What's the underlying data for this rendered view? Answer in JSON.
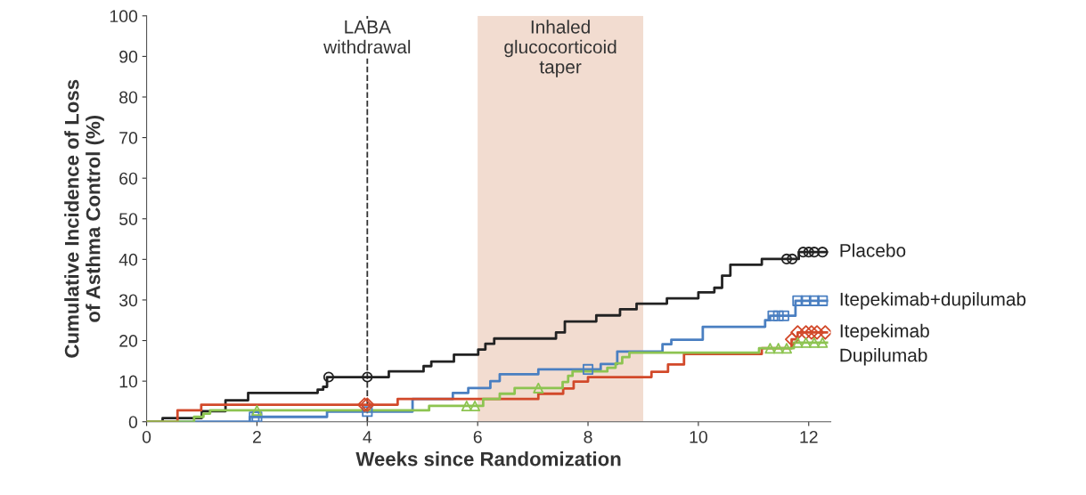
{
  "chart_data": {
    "type": "step",
    "xlabel": "Weeks since Randomization",
    "ylabel": "Cumulative Incidence of Loss\nof Asthma Control (%)",
    "xlim": [
      0,
      12.4
    ],
    "xticks": [
      0,
      2,
      4,
      6,
      8,
      10,
      12
    ],
    "ylim": [
      0,
      100
    ],
    "yticks": [
      0,
      10,
      20,
      30,
      40,
      50,
      60,
      70,
      80,
      90,
      100
    ],
    "grid": false,
    "legend": false,
    "series": [
      {
        "name": "Placebo",
        "color": "#222222",
        "x": [
          0,
          0.29,
          1.0,
          1.43,
          1.84,
          3.1,
          3.2,
          3.27,
          4.39,
          5.02,
          5.16,
          5.57,
          6.01,
          6.14,
          6.3,
          7.42,
          7.58,
          8.15,
          8.58,
          8.88,
          9.43,
          10.0,
          10.29,
          10.43,
          10.58,
          11.15,
          11.82,
          12.33
        ],
        "values": [
          0,
          0.9,
          2.6,
          5.3,
          7.1,
          7.9,
          8.6,
          11,
          12.4,
          13.7,
          14.8,
          16.5,
          17.8,
          19.2,
          20.5,
          22,
          24.7,
          26.2,
          27.7,
          29.1,
          30.4,
          31.9,
          33,
          36,
          38.7,
          40.1,
          41.8,
          41.8
        ]
      },
      {
        "name": "Itepekimab+dupilumab",
        "color": "#4a7fc1",
        "x": [
          0,
          1.87,
          3.27,
          4.82,
          5.55,
          5.83,
          6.23,
          6.4,
          7.1,
          8.23,
          8.53,
          9.35,
          9.51,
          10.08,
          11.21,
          11.3,
          11.76,
          12.33
        ],
        "values": [
          0,
          1.2,
          2.5,
          5.6,
          7.1,
          8.3,
          10.0,
          11.7,
          12.9,
          14.2,
          17.3,
          19.1,
          20.2,
          23.4,
          25,
          26.1,
          29.8,
          29.8
        ]
      },
      {
        "name": "Itepekimab",
        "color": "#d2492a",
        "x": [
          0,
          0.56,
          0.99,
          4.55,
          7.1,
          7.55,
          7.74,
          8.0,
          9.15,
          9.45,
          9.74,
          11.15,
          11.69,
          11.8,
          12.33
        ],
        "values": [
          0,
          2.8,
          4.2,
          5.6,
          6.9,
          8.2,
          9.9,
          11.0,
          12.3,
          14.1,
          16.7,
          18.1,
          20.3,
          22,
          22
        ]
      },
      {
        "name": "Dupilumab",
        "color": "#8dc451",
        "x": [
          0,
          0.86,
          1.03,
          1.15,
          5.12,
          6.1,
          6.4,
          6.67,
          7.54,
          7.64,
          7.72,
          8.35,
          8.5,
          8.62,
          8.75,
          11.1,
          11.73,
          12.33
        ],
        "values": [
          0,
          1.2,
          2.0,
          2.8,
          3.9,
          5.6,
          6.9,
          8.3,
          9.8,
          11.3,
          12.4,
          13.3,
          14.4,
          15.9,
          17.0,
          18.1,
          19.5,
          19.5
        ]
      },
      {
        "type": "scatter",
        "marker": "circle",
        "color": "#222222",
        "x": [
          3.3,
          4.0,
          11.6,
          11.7,
          11.9,
          12.0,
          12.1,
          12.25
        ],
        "values": [
          11,
          11,
          40.1,
          40.1,
          41.8,
          41.8,
          41.8,
          41.8
        ]
      },
      {
        "type": "scatter",
        "marker": "square",
        "color": "#4a7fc1",
        "x": [
          1.95,
          2.0,
          4.0,
          8.0,
          11.35,
          11.45,
          11.55,
          11.8,
          11.95,
          12.1,
          12.25
        ],
        "values": [
          1.2,
          1.2,
          2.5,
          12.9,
          26.1,
          26.1,
          26.1,
          29.8,
          29.8,
          29.8,
          29.8
        ]
      },
      {
        "type": "scatter",
        "marker": "diamond",
        "color": "#d2492a",
        "x": [
          3.95,
          4.0,
          11.7,
          11.8,
          11.95,
          12.05,
          12.15,
          12.3
        ],
        "values": [
          4.2,
          4.2,
          20.3,
          22,
          22,
          22,
          22,
          22
        ]
      },
      {
        "type": "scatter",
        "marker": "triangle",
        "color": "#8dc451",
        "x": [
          2.0,
          5.8,
          5.95,
          7.1,
          11.3,
          11.45,
          11.6,
          11.8,
          11.95,
          12.1,
          12.25
        ],
        "values": [
          2.8,
          3.9,
          3.9,
          8.3,
          18.1,
          18.1,
          18.1,
          19.5,
          19.5,
          19.5,
          19.5
        ]
      }
    ],
    "ref_lines": [
      {
        "axis": "x",
        "value": 4,
        "label": "LABA\nwithdrawal",
        "color": "#333333",
        "line_style": "dashed"
      }
    ],
    "bands": [
      {
        "axis": "x",
        "from": 6,
        "to": 9,
        "label": "Inhaled\nglucocorticoid\ntaper",
        "color": "#f2dcd0"
      }
    ]
  }
}
